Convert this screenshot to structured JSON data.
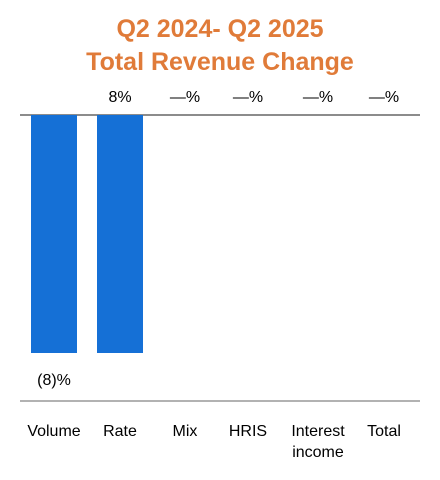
{
  "colors": {
    "title": "#e07b39",
    "bar": "#1570d6",
    "axis": "#666666",
    "text": "#000000"
  },
  "chart_data": {
    "type": "bar",
    "title": "Q2 2024- Q2 2025",
    "subtitle": "Total Revenue Change",
    "categories": [
      "Volume",
      "Rate",
      "Mix",
      "HRIS",
      "Interest income",
      "Total"
    ],
    "values": [
      -8,
      8,
      null,
      null,
      null,
      null
    ],
    "value_labels": [
      "(8)%",
      "8%",
      "—%",
      "—%",
      "—%",
      "—%"
    ],
    "category_lines": [
      [
        "Volume"
      ],
      [
        "Rate"
      ],
      [
        "Mix"
      ],
      [
        "HRIS"
      ],
      [
        "Interest",
        "income"
      ],
      [
        "Total"
      ]
    ]
  }
}
